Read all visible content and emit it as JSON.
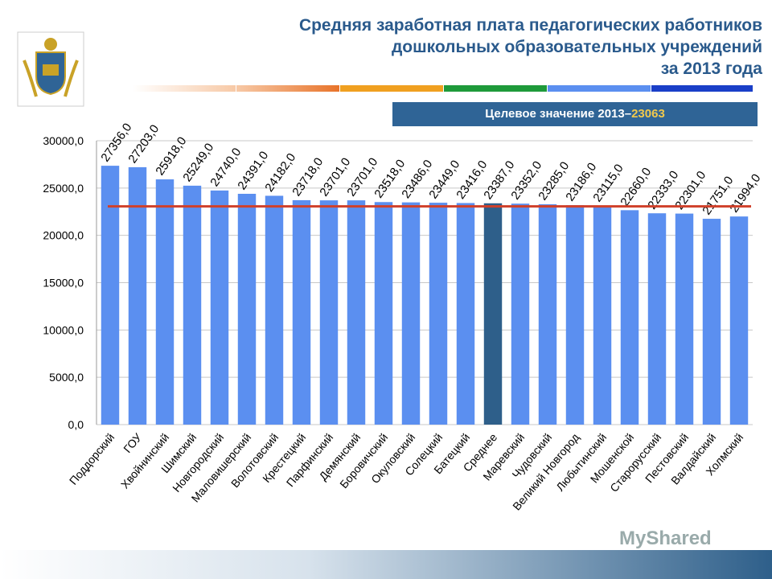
{
  "title_lines": [
    "Средняя заработная плата педагогических работников",
    "дошкольных образовательных учреждений",
    "за 2013 года"
  ],
  "target": {
    "label": "Целевое значение 2013–",
    "value": "23063"
  },
  "watermark": "MyShared",
  "colors": {
    "bar": "#5b8ff0",
    "mean_bar": "#2e5f8a",
    "target_line": "#d0402a",
    "title": "#2a5a8c"
  },
  "chart_data": {
    "type": "bar",
    "categories": [
      "Поддорский",
      "ГОУ",
      "Хвойнинский",
      "Шимский",
      "Новгородский",
      "Маловишерский",
      "Волотовский",
      "Крестецкий",
      "Парфинский",
      "Демянский",
      "Боровичский",
      "Окуловский",
      "Солецкий",
      "Батецкий",
      "Среднее",
      "Маревский",
      "Чудовский",
      "Великий Новгород",
      "Любытинский",
      "Мошенской",
      "Старорусский",
      "Пестовский",
      "Валдайский",
      "Холмский"
    ],
    "values": [
      27356,
      27203,
      25918,
      25249,
      24740,
      24391,
      24182,
      23718,
      23701,
      23701,
      23518,
      23486,
      23449,
      23416,
      23387,
      23352,
      23285,
      23186,
      23115,
      22660,
      22333,
      22301,
      21751,
      21994
    ],
    "data_labels": [
      "27356,0",
      "27203,0",
      "25918,0",
      "25249,0",
      "24740,0",
      "24391,0",
      "24182,0",
      "23718,0",
      "23701,0",
      "23701,0",
      "23518,0",
      "23486,0",
      "23449,0",
      "23416,0",
      "23387,0",
      "23352,0",
      "23285,0",
      "23186,0",
      "23115,0",
      "22660,0",
      "22333,0",
      "22301,0",
      "21751,0",
      "21994,0"
    ],
    "highlight": "Среднее",
    "target_line": 23063,
    "ylim": [
      0,
      30000
    ],
    "yticks": [
      "0,0",
      "5000,0",
      "10000,0",
      "15000,0",
      "20000,0",
      "25000,0",
      "30000,0"
    ],
    "grid": true,
    "legend": "none"
  }
}
